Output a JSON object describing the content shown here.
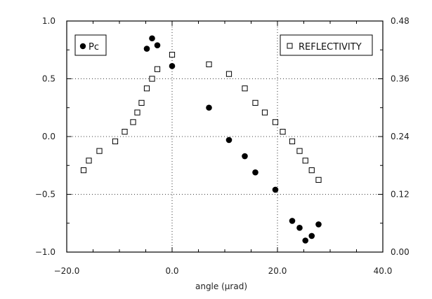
{
  "chart_data": {
    "type": "scatter",
    "title": "",
    "xlabel": "angle (μrad)",
    "ylabel_left": "",
    "ylabel_right": "",
    "xlim": [
      -20,
      40
    ],
    "ylim_left": [
      -1,
      1
    ],
    "ylim_right": [
      0,
      0.48
    ],
    "x_ticks": [
      "-20.0",
      "0.0",
      "20.0",
      "40.0"
    ],
    "y_left_ticks": [
      "1.0",
      "0.5",
      "0.0",
      "-0.5",
      "-1.0"
    ],
    "y_right_ticks": [
      "0.48",
      "0.36",
      "0.24",
      "0.12",
      "0.00"
    ],
    "grid": true,
    "series": [
      {
        "name": "Pc",
        "axis": "left",
        "marker": "filled-circle",
        "color": "#000000",
        "points": [
          [
            -4.8,
            0.76
          ],
          [
            -3.8,
            0.85
          ],
          [
            -2.8,
            0.79
          ],
          [
            0.0,
            0.61
          ],
          [
            7.0,
            0.25
          ],
          [
            10.8,
            -0.03
          ],
          [
            13.8,
            -0.17
          ],
          [
            15.8,
            -0.31
          ],
          [
            19.6,
            -0.46
          ],
          [
            22.8,
            -0.73
          ],
          [
            24.2,
            -0.79
          ],
          [
            25.3,
            -0.9
          ],
          [
            26.5,
            -0.86
          ],
          [
            27.8,
            -0.76
          ]
        ]
      },
      {
        "name": "REFLECTIVITY",
        "axis": "right",
        "marker": "open-square",
        "color": "#000000",
        "points": [
          [
            -16.8,
            0.17
          ],
          [
            -15.8,
            0.19
          ],
          [
            -13.8,
            0.21
          ],
          [
            -10.8,
            0.23
          ],
          [
            -9.0,
            0.25
          ],
          [
            -7.4,
            0.27
          ],
          [
            -6.6,
            0.29
          ],
          [
            -5.8,
            0.31
          ],
          [
            -4.8,
            0.34
          ],
          [
            -3.8,
            0.36
          ],
          [
            -2.8,
            0.38
          ],
          [
            0.0,
            0.41
          ],
          [
            7.0,
            0.39
          ],
          [
            10.8,
            0.37
          ],
          [
            13.8,
            0.34
          ],
          [
            15.8,
            0.31
          ],
          [
            17.6,
            0.29
          ],
          [
            19.6,
            0.27
          ],
          [
            21.0,
            0.25
          ],
          [
            22.8,
            0.23
          ],
          [
            24.2,
            0.21
          ],
          [
            25.3,
            0.19
          ],
          [
            26.5,
            0.17
          ],
          [
            27.8,
            0.15
          ]
        ]
      }
    ],
    "legend": [
      {
        "label": "Pc",
        "placement": "top-left"
      },
      {
        "label": "REFLECTIVITY",
        "placement": "top-right"
      }
    ]
  }
}
